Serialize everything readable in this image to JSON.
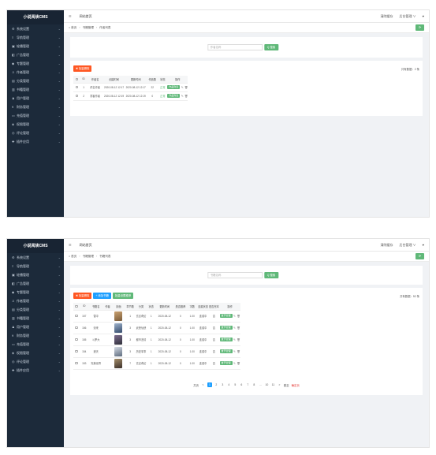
{
  "sidebar": {
    "logo": "小说阅读CMS",
    "items": [
      {
        "label": "系统设置",
        "icon": "gear-icon"
      },
      {
        "label": "导航管理",
        "icon": "menu-icon"
      },
      {
        "label": "轮播管理",
        "icon": "image-icon"
      },
      {
        "label": "广告管理",
        "icon": "ad-icon"
      },
      {
        "label": "专题管理",
        "icon": "topic-icon"
      },
      {
        "label": "作者管理",
        "icon": "user-icon"
      },
      {
        "label": "分类管理",
        "icon": "folder-icon"
      },
      {
        "label": "书籍管理",
        "icon": "book-icon"
      },
      {
        "label": "用户管理",
        "icon": "users-icon"
      },
      {
        "label": "财务管理",
        "icon": "money-icon"
      },
      {
        "label": "充值管理",
        "icon": "card-icon"
      },
      {
        "label": "权限管理",
        "icon": "lock-icon"
      },
      {
        "label": "评论管理",
        "icon": "comment-icon"
      },
      {
        "label": "插件应用",
        "icon": "plugin-icon"
      }
    ]
  },
  "topbar": {
    "collapse": "☰",
    "home": "网站首页",
    "right": [
      "清除缓存",
      "后台管理 ∨",
      "♥"
    ]
  },
  "screen1": {
    "breadcrumb": [
      "首页",
      "书籍管理",
      "作者列表"
    ],
    "search_placeholder": "作者名称",
    "search_btn": "Q 搜索",
    "batch_delete": "批量删除",
    "total": "共有数据：2 条",
    "columns": [
      "",
      "ID",
      "作者名",
      "创建时间",
      "更新时间",
      "作品数",
      "状态",
      "操作"
    ],
    "rows": [
      [
        "",
        "1",
        "佚名作者",
        "2020-08-12 12:17",
        "2020-08-12 12:17",
        "22",
        "正常",
        ""
      ],
      [
        "",
        "2",
        "墨客作者",
        "2020-08-12 12:19",
        "2020-08-12 12:19",
        "0",
        "正常",
        ""
      ]
    ],
    "op_label": "作品列表"
  },
  "screen2": {
    "breadcrumb": [
      "首页",
      "书籍管理",
      "书籍列表"
    ],
    "search_placeholder": "书籍名称",
    "search_btn": "Q 搜索",
    "buttons": [
      "批量删除",
      "添加书籍",
      "批量设置推荐"
    ],
    "total": "共有数据：52 条",
    "columns": [
      "",
      "ID",
      "书籍名",
      "作者",
      "封面",
      "章节数",
      "分类",
      "状态",
      "更新时间",
      "是否推荐",
      "字数",
      "连载状态",
      "是否完本",
      "操作"
    ],
    "rows": [
      [
        "",
        "157",
        "雪中",
        "",
        "",
        "1",
        "玄幻奇幻",
        "1",
        "2020-08-12",
        "0",
        "1.00",
        "连载中",
        "否",
        ""
      ],
      [
        "",
        "156",
        "剑来",
        "",
        "",
        "3",
        "武侠仙侠",
        "1",
        "2020-08-12",
        "0",
        "1.00",
        "连载中",
        "否",
        ""
      ],
      [
        "",
        "155",
        "斗罗大",
        "",
        "",
        "3",
        "都市言情",
        "1",
        "2020-08-12",
        "0",
        "1.00",
        "连载中",
        "否",
        ""
      ],
      [
        "",
        "154",
        "遮天",
        "",
        "",
        "3",
        "历史军事",
        "1",
        "2020-08-12",
        "0",
        "1.00",
        "连载中",
        "否",
        ""
      ],
      [
        "",
        "153",
        "完美世界",
        "",
        "",
        "7",
        "玄幻奇幻",
        "1",
        "2020-08-12",
        "0",
        "1.00",
        "连载中",
        "否",
        ""
      ]
    ],
    "op_label": "章节管理",
    "pagination": [
      "共页",
      "<",
      "1",
      "2",
      "3",
      "4",
      "5",
      "6",
      "7",
      "8",
      "...",
      "10",
      "11",
      ">",
      "跳至",
      "确定页"
    ],
    "current_page": "1"
  },
  "colors": {
    "sidebar": "#1c2a3a",
    "accent_green": "#5fb878",
    "accent_red": "#ff5722",
    "accent_blue": "#1e9fff"
  }
}
